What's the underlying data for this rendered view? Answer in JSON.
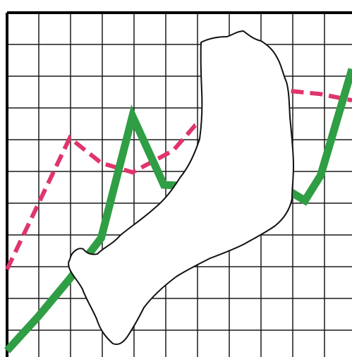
{
  "chart_data": {
    "type": "line",
    "title": "",
    "xlabel": "",
    "ylabel": "",
    "grid": true,
    "legend": "none",
    "xlim": [
      0,
      11
    ],
    "ylim": [
      0,
      11
    ],
    "series": [
      {
        "color": "#e0356b",
        "style": "dashed",
        "x": [
          0,
          2,
          3,
          4,
          5.3,
          6,
          9,
          10,
          11
        ],
        "y": [
          2.8,
          7,
          6.2,
          5.9,
          6.6,
          7.4,
          8.5,
          8.4,
          8.2
        ]
      },
      {
        "color": "#2f9e44",
        "style": "solid",
        "x": [
          0,
          1,
          2,
          3,
          4,
          5,
          9,
          9.5,
          10,
          11
        ],
        "y": [
          0.2,
          1.3,
          2.5,
          3.8,
          7.7,
          5.5,
          5.3,
          5,
          5.8,
          9.2
        ]
      }
    ],
    "mask_color": "#ffffff",
    "outline_color": "#111111"
  }
}
